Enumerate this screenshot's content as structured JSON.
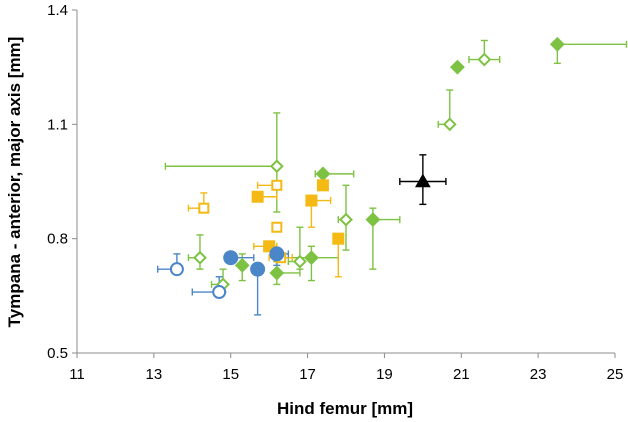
{
  "chart_data": {
    "type": "scatter",
    "title": "",
    "xlabel": "Hind femur [mm]",
    "ylabel": "Tympana - anterior, major axis [mm]",
    "xlim": [
      11,
      25
    ],
    "ylim": [
      0.5,
      1.4
    ],
    "xticks": [
      "11",
      "13",
      "15",
      "17",
      "19",
      "21",
      "23",
      "25"
    ],
    "yticks": [
      "0.5",
      "0.8",
      "1.1",
      "1.4"
    ],
    "grid": false,
    "legend": "none",
    "colors": {
      "green": "#7dc242",
      "yellow": "#f5b914",
      "blue": "#4a86c8",
      "black": "#000000"
    },
    "series": [
      {
        "color": "green",
        "marker": "diamond",
        "fill": "filled",
        "points": [
          {
            "x": 15.3,
            "y": 0.73,
            "xerr": [
              0,
              0
            ],
            "yerr": [
              0.04,
              0.03
            ]
          },
          {
            "x": 16.2,
            "y": 0.71,
            "xerr": [
              0,
              0.6
            ],
            "yerr": [
              0.03,
              0.03
            ]
          },
          {
            "x": 17.1,
            "y": 0.75,
            "xerr": [
              0.5,
              0.7
            ],
            "yerr": [
              0.06,
              0.03
            ]
          },
          {
            "x": 17.4,
            "y": 0.97,
            "xerr": [
              0.2,
              0.8
            ],
            "yerr": [
              0,
              0
            ]
          },
          {
            "x": 18.7,
            "y": 0.85,
            "xerr": [
              0,
              0.7
            ],
            "yerr": [
              0.13,
              0.03
            ]
          },
          {
            "x": 20.9,
            "y": 1.25,
            "xerr": [
              0,
              0
            ],
            "yerr": [
              0,
              0
            ]
          },
          {
            "x": 23.5,
            "y": 1.31,
            "xerr": [
              0,
              1.8
            ],
            "yerr": [
              0.05,
              0
            ]
          }
        ]
      },
      {
        "color": "green",
        "marker": "diamond",
        "fill": "open",
        "points": [
          {
            "x": 14.2,
            "y": 0.75,
            "xerr": [
              0.3,
              0
            ],
            "yerr": [
              0.03,
              0.06
            ]
          },
          {
            "x": 14.8,
            "y": 0.68,
            "xerr": [
              0.3,
              0
            ],
            "yerr": [
              0.02,
              0.04
            ]
          },
          {
            "x": 16.2,
            "y": 0.99,
            "xerr": [
              2.9,
              0
            ],
            "yerr": [
              0.12,
              0.14
            ]
          },
          {
            "x": 16.8,
            "y": 0.74,
            "xerr": [
              0.3,
              0
            ],
            "yerr": [
              0.02,
              0.09
            ]
          },
          {
            "x": 18.0,
            "y": 0.85,
            "xerr": [
              0.2,
              0
            ],
            "yerr": [
              0.08,
              0.09
            ]
          },
          {
            "x": 20.7,
            "y": 1.1,
            "xerr": [
              0.3,
              0
            ],
            "yerr": [
              0,
              0.09
            ]
          },
          {
            "x": 21.6,
            "y": 1.27,
            "xerr": [
              0.4,
              0.4
            ],
            "yerr": [
              0,
              0.05
            ]
          }
        ]
      },
      {
        "color": "yellow",
        "marker": "square",
        "fill": "filled",
        "points": [
          {
            "x": 15.7,
            "y": 0.91,
            "xerr": [
              0,
              0.5
            ],
            "yerr": [
              0,
              0
            ]
          },
          {
            "x": 16.0,
            "y": 0.78,
            "xerr": [
              0.4,
              0.2
            ],
            "yerr": [
              0,
              0
            ]
          },
          {
            "x": 17.1,
            "y": 0.9,
            "xerr": [
              0,
              0.5
            ],
            "yerr": [
              0.07,
              0
            ]
          },
          {
            "x": 17.4,
            "y": 0.94,
            "xerr": [
              0,
              0
            ],
            "yerr": [
              0,
              0.03
            ]
          },
          {
            "x": 17.8,
            "y": 0.8,
            "xerr": [
              0,
              0
            ],
            "yerr": [
              0.1,
              0
            ]
          }
        ]
      },
      {
        "color": "yellow",
        "marker": "square",
        "fill": "open",
        "points": [
          {
            "x": 14.3,
            "y": 0.88,
            "xerr": [
              0.4,
              0
            ],
            "yerr": [
              0,
              0.04
            ]
          },
          {
            "x": 16.2,
            "y": 0.94,
            "xerr": [
              0.5,
              0
            ],
            "yerr": [
              0,
              0
            ]
          },
          {
            "x": 16.2,
            "y": 0.83,
            "xerr": [
              0,
              0
            ],
            "yerr": [
              0,
              0
            ]
          },
          {
            "x": 16.3,
            "y": 0.75,
            "xerr": [
              0.3,
              0.3
            ],
            "yerr": [
              0,
              0
            ]
          }
        ]
      },
      {
        "color": "blue",
        "marker": "circle",
        "fill": "filled",
        "points": [
          {
            "x": 15.0,
            "y": 0.75,
            "xerr": [
              0,
              0.6
            ],
            "yerr": [
              0,
              0
            ]
          },
          {
            "x": 15.7,
            "y": 0.72,
            "xerr": [
              0,
              0
            ],
            "yerr": [
              0.12,
              0
            ]
          },
          {
            "x": 16.2,
            "y": 0.76,
            "xerr": [
              0,
              0.3
            ],
            "yerr": [
              0.03,
              0
            ]
          }
        ]
      },
      {
        "color": "blue",
        "marker": "circle",
        "fill": "open",
        "points": [
          {
            "x": 13.6,
            "y": 0.72,
            "xerr": [
              0.5,
              0
            ],
            "yerr": [
              0,
              0.04
            ]
          },
          {
            "x": 14.7,
            "y": 0.66,
            "xerr": [
              0.7,
              0
            ],
            "yerr": [
              0,
              0.04
            ]
          }
        ]
      },
      {
        "color": "black",
        "marker": "triangle",
        "fill": "filled",
        "points": [
          {
            "x": 20.0,
            "y": 0.95,
            "xerr": [
              0.6,
              0.6
            ],
            "yerr": [
              0.06,
              0.07
            ]
          }
        ]
      }
    ]
  }
}
